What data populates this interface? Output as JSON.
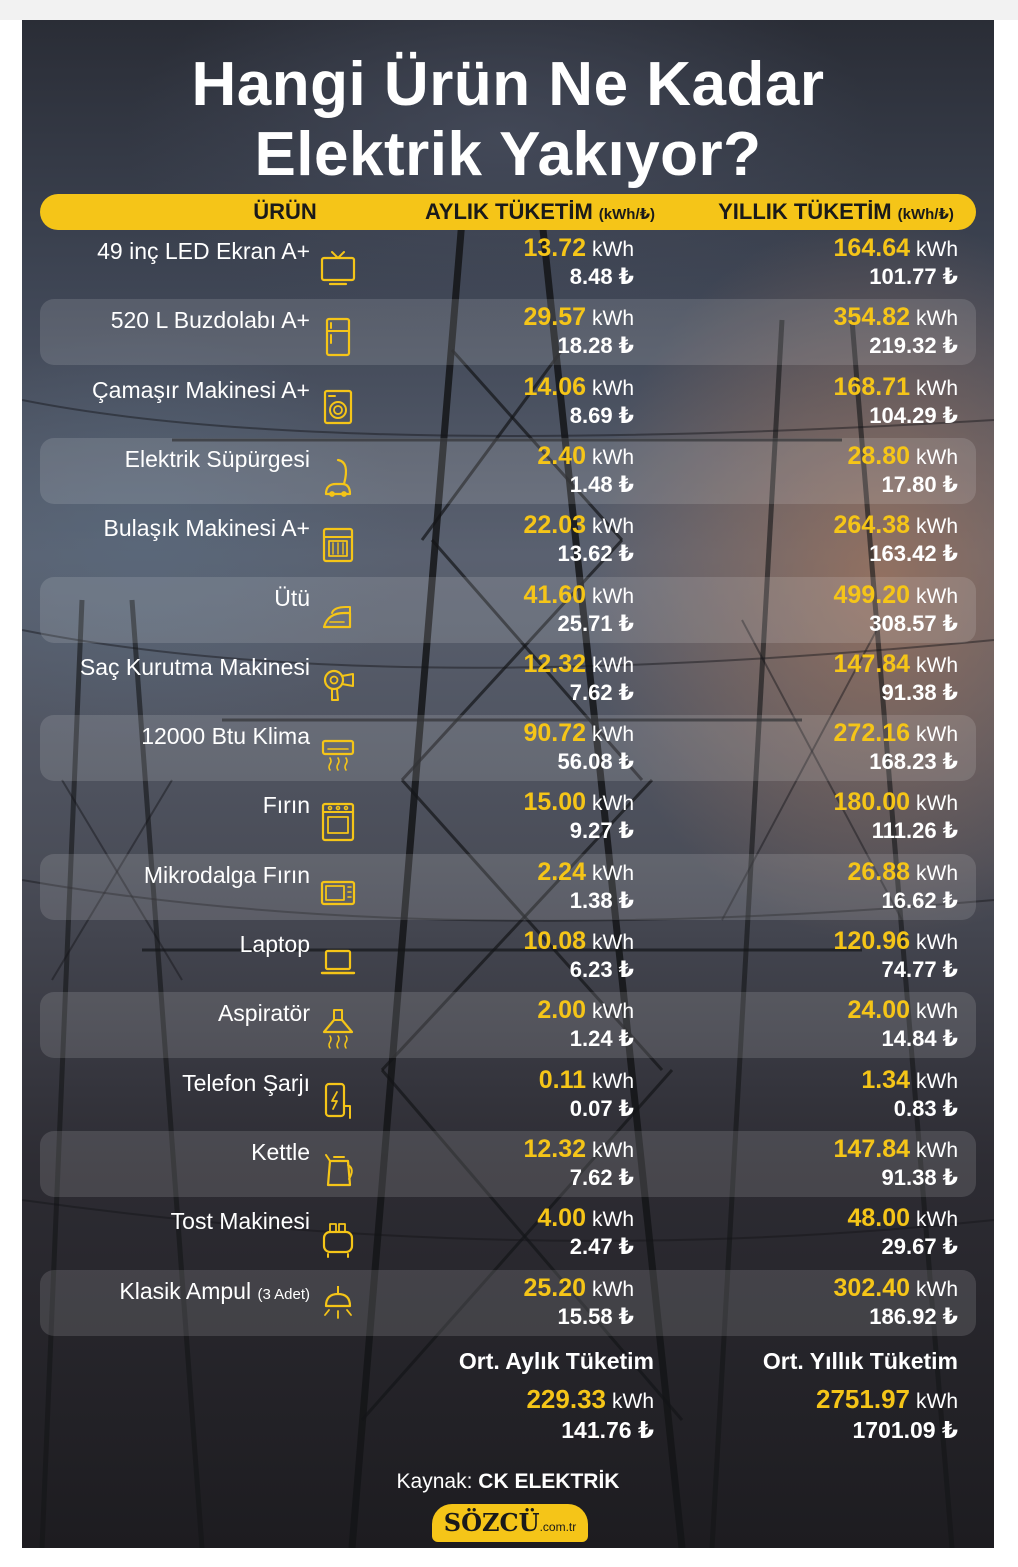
{
  "title_line1": "Hangi Ürün Ne Kadar",
  "title_line2": "Elektrik Yakıyor?",
  "header": {
    "product": "ÜRÜN",
    "monthly": "AYLIK TÜKETİM",
    "yearly": "YILLIK TÜKETİM",
    "unit_note": "(kWh/₺)"
  },
  "kwh_unit": "kWh",
  "products": [
    {
      "name": "49 inç LED Ekran A+",
      "icon": "tv-icon",
      "monthly_kwh": "13.72",
      "monthly_tl": "8.48 ₺",
      "yearly_kwh": "164.64",
      "yearly_tl": "101.77 ₺"
    },
    {
      "name": "520 L Buzdolabı A+",
      "icon": "fridge-icon",
      "monthly_kwh": "29.57",
      "monthly_tl": "18.28 ₺",
      "yearly_kwh": "354.82",
      "yearly_tl": "219.32 ₺"
    },
    {
      "name": "Çamaşır Makinesi A+",
      "icon": "washing-machine-icon",
      "monthly_kwh": "14.06",
      "monthly_tl": "8.69 ₺",
      "yearly_kwh": "168.71",
      "yearly_tl": "104.29 ₺"
    },
    {
      "name": "Elektrik Süpürgesi",
      "icon": "vacuum-cleaner-icon",
      "monthly_kwh": "2.40",
      "monthly_tl": "1.48 ₺",
      "yearly_kwh": "28.80",
      "yearly_tl": "17.80 ₺"
    },
    {
      "name": "Bulaşık Makinesi A+",
      "icon": "dishwasher-icon",
      "monthly_kwh": "22.03",
      "monthly_tl": "13.62 ₺",
      "yearly_kwh": "264.38",
      "yearly_tl": "163.42 ₺"
    },
    {
      "name": "Ütü",
      "icon": "iron-icon",
      "monthly_kwh": "41.60",
      "monthly_tl": "25.71 ₺",
      "yearly_kwh": "499.20",
      "yearly_tl": "308.57 ₺"
    },
    {
      "name": "Saç Kurutma Makinesi",
      "icon": "hair-dryer-icon",
      "monthly_kwh": "12.32",
      "monthly_tl": "7.62 ₺",
      "yearly_kwh": "147.84",
      "yearly_tl": "91.38 ₺"
    },
    {
      "name": "12000 Btu Klima",
      "icon": "air-conditioner-icon",
      "monthly_kwh": "90.72",
      "monthly_tl": "56.08 ₺",
      "yearly_kwh": "272.16",
      "yearly_tl": "168.23 ₺"
    },
    {
      "name": "Fırın",
      "icon": "oven-icon",
      "monthly_kwh": "15.00",
      "monthly_tl": "9.27 ₺",
      "yearly_kwh": "180.00",
      "yearly_tl": "111.26 ₺"
    },
    {
      "name": "Mikrodalga Fırın",
      "icon": "microwave-icon",
      "monthly_kwh": "2.24",
      "monthly_tl": "1.38 ₺",
      "yearly_kwh": "26.88",
      "yearly_tl": "16.62 ₺"
    },
    {
      "name": "Laptop",
      "icon": "laptop-icon",
      "monthly_kwh": "10.08",
      "monthly_tl": "6.23 ₺",
      "yearly_kwh": "120.96",
      "yearly_tl": "74.77 ₺"
    },
    {
      "name": "Aspiratör",
      "icon": "range-hood-icon",
      "monthly_kwh": "2.00",
      "monthly_tl": "1.24 ₺",
      "yearly_kwh": "24.00",
      "yearly_tl": "14.84 ₺"
    },
    {
      "name": "Telefon Şarjı",
      "icon": "phone-charger-icon",
      "monthly_kwh": "0.11",
      "monthly_tl": "0.07 ₺",
      "yearly_kwh": "1.34",
      "yearly_tl": "0.83 ₺"
    },
    {
      "name": "Kettle",
      "icon": "kettle-icon",
      "monthly_kwh": "12.32",
      "monthly_tl": "7.62 ₺",
      "yearly_kwh": "147.84",
      "yearly_tl": "91.38 ₺"
    },
    {
      "name": "Tost Makinesi",
      "icon": "toaster-icon",
      "monthly_kwh": "4.00",
      "monthly_tl": "2.47 ₺",
      "yearly_kwh": "48.00",
      "yearly_tl": "29.67 ₺"
    },
    {
      "name": "Klasik Ampul",
      "note": "(3 Adet)",
      "icon": "ceiling-lamp-icon",
      "monthly_kwh": "25.20",
      "monthly_tl": "15.58 ₺",
      "yearly_kwh": "302.40",
      "yearly_tl": "186.92 ₺"
    }
  ],
  "average": {
    "monthly_label": "Ort. Aylık Tüketim",
    "yearly_label": "Ort. Yıllık Tüketim",
    "monthly_kwh": "229.33",
    "monthly_tl": "141.76 ₺",
    "yearly_kwh": "2751.97",
    "yearly_tl": "1701.09 ₺"
  },
  "source_prefix": "Kaynak:",
  "source_name": "CK ELEKTRİK",
  "logo_main": "SÖZCÜ",
  "logo_domain": ".com.tr",
  "colors": {
    "accent": "#f5c518",
    "text": "#ffffff",
    "header_text": "#1a1a1a"
  }
}
